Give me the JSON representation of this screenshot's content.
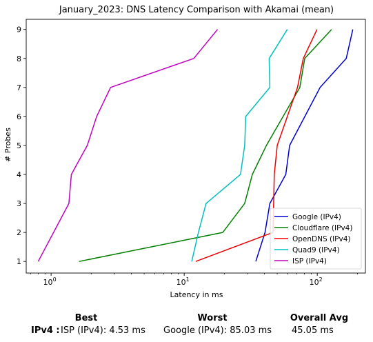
{
  "chart_data": {
    "type": "line",
    "title": "January_2023: DNS Latency Comparison with Akamai (mean)",
    "xlabel": "Latency in ms",
    "ylabel": "# Probes",
    "xscale": "log",
    "xlim": [
      0.65,
      230
    ],
    "ylim": [
      0.6,
      9.35
    ],
    "xticks": [
      {
        "value": 1,
        "base": "10",
        "exp": "0"
      },
      {
        "value": 10,
        "base": "10",
        "exp": "1"
      },
      {
        "value": 100,
        "base": "10",
        "exp": "2"
      }
    ],
    "yticks": [
      "1",
      "2",
      "3",
      "4",
      "5",
      "6",
      "7",
      "8",
      "9"
    ],
    "legend_position": "bottom-right",
    "series": [
      {
        "name": "Google (IPv4)",
        "color": "#0000cc",
        "x": [
          34.5,
          40.5,
          44,
          58,
          62,
          105,
          165,
          185
        ],
        "y": [
          1,
          2,
          3,
          4,
          5,
          7,
          8,
          9
        ]
      },
      {
        "name": "Cloudflare (IPv4)",
        "color": "#008000",
        "x": [
          1.62,
          19.5,
          28.5,
          32.5,
          41.5,
          74,
          80.5,
          128
        ],
        "y": [
          1,
          2,
          3,
          4,
          5,
          7,
          8,
          9
        ]
      },
      {
        "name": "OpenDNS (IPv4)",
        "color": "#ee0000",
        "x": [
          12.2,
          46.5,
          47,
          47.5,
          50,
          71,
          78.5,
          99.5
        ],
        "y": [
          1,
          2,
          3,
          4,
          5,
          7,
          8,
          9
        ]
      },
      {
        "name": "Quad9 (IPv4)",
        "color": "#00bfbf",
        "x": [
          11.4,
          12.8,
          14.6,
          26.5,
          28.5,
          29,
          44,
          43.5,
          59.5
        ],
        "y": [
          1,
          2,
          3,
          4,
          5,
          6,
          7,
          8,
          9
        ]
      },
      {
        "name": "ISP (IPv4)",
        "color": "#bf00bf",
        "x": [
          0.8,
          1.36,
          1.42,
          1.87,
          2.2,
          2.8,
          11.8,
          17.8
        ],
        "y": [
          1,
          3,
          4,
          5,
          6,
          7,
          8,
          9
        ]
      }
    ]
  },
  "summary": {
    "headers": {
      "best": "Best",
      "worst": "Worst",
      "avg": "Overall Avg"
    },
    "row_label": "IPv4 :",
    "best": "ISP (IPv4): 4.53 ms",
    "worst": "Google (IPv4): 85.03 ms",
    "avg": "45.05 ms"
  }
}
